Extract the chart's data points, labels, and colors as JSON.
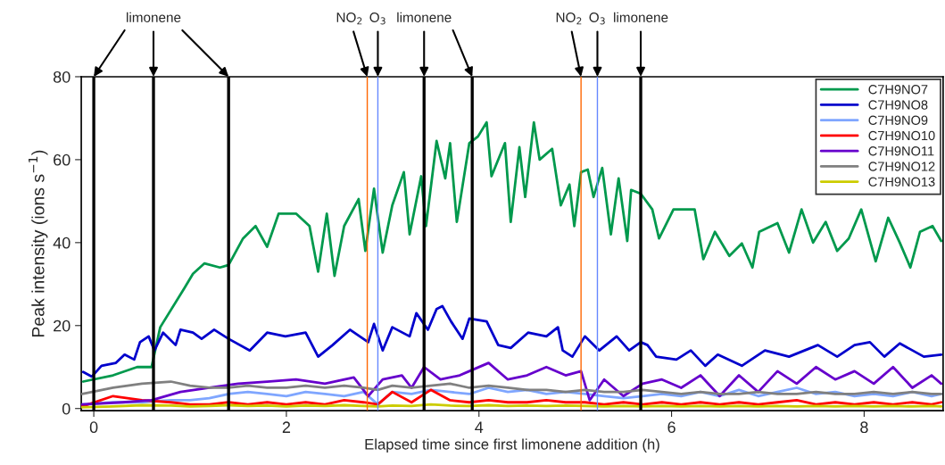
{
  "chart_data": {
    "type": "line",
    "xlabel": "Elapsed time since first limonene addition (h)",
    "ylabel": "Peak intensity (ions s$^{−1}$)",
    "xlim": [
      -0.13,
      8.82
    ],
    "ylim": [
      -0.5,
      80
    ],
    "xticks": [
      0,
      2,
      4,
      6,
      8
    ],
    "yticks": [
      0,
      20,
      40,
      60,
      80
    ],
    "grid": false,
    "legend": "top right",
    "series": [
      {
        "name": "C7H9NO7",
        "color": "#00994d",
        "x": [
          -0.11,
          0.2,
          0.45,
          0.6,
          0.69,
          0.94,
          1.03,
          1.15,
          1.31,
          1.4,
          1.55,
          1.68,
          1.8,
          1.92,
          2.1,
          2.24,
          2.33,
          2.42,
          2.5,
          2.6,
          2.75,
          2.82,
          2.91,
          3.0,
          3.1,
          3.22,
          3.28,
          3.4,
          3.45,
          3.56,
          3.65,
          3.7,
          3.77,
          3.9,
          3.99,
          4.08,
          4.13,
          4.27,
          4.33,
          4.42,
          4.48,
          4.57,
          4.63,
          4.76,
          4.85,
          4.94,
          4.99,
          5.06,
          5.13,
          5.19,
          5.28,
          5.37,
          5.45,
          5.54,
          5.58,
          5.68,
          5.8,
          5.87,
          6.02,
          6.24,
          6.33,
          6.45,
          6.6,
          6.73,
          6.84,
          6.91,
          7.1,
          7.22,
          7.35,
          7.47,
          7.6,
          7.72,
          7.84,
          7.97,
          8.12,
          8.25,
          8.37,
          8.48,
          8.58,
          8.71,
          8.8
        ],
        "values": [
          6.5,
          8,
          10,
          10,
          19.6,
          29,
          32.5,
          35,
          34,
          34.6,
          41,
          44,
          39,
          47,
          47,
          44,
          33,
          47,
          32,
          44,
          50.5,
          38,
          53,
          37.6,
          49,
          57,
          42,
          56,
          44,
          64.5,
          55.5,
          64,
          45,
          64,
          65.6,
          69,
          56,
          64,
          45,
          63,
          51,
          69,
          60,
          62.6,
          49,
          54,
          44,
          57,
          57.6,
          51,
          58,
          42,
          55.5,
          40.4,
          52.7,
          51.8,
          48,
          41,
          48,
          48,
          36,
          42.6,
          36.8,
          39.8,
          34,
          42.6,
          44.7,
          37.6,
          48,
          40,
          45,
          38,
          41,
          48,
          35.5,
          46,
          40,
          34,
          42.6,
          44,
          40.4
        ]
      },
      {
        "name": "C7H9NO8",
        "color": "#0000cc",
        "x": [
          -0.11,
          -0.02,
          0.08,
          0.23,
          0.32,
          0.42,
          0.48,
          0.57,
          0.63,
          0.72,
          0.85,
          0.9,
          1.03,
          1.12,
          1.25,
          1.4,
          1.62,
          1.8,
          1.99,
          2.2,
          2.33,
          2.48,
          2.66,
          2.85,
          2.91,
          3.0,
          3.1,
          3.28,
          3.35,
          3.47,
          3.56,
          3.62,
          3.71,
          3.83,
          3.9,
          4.08,
          4.2,
          4.33,
          4.51,
          4.7,
          4.82,
          4.87,
          4.97,
          5.1,
          5.25,
          5.43,
          5.56,
          5.68,
          5.75,
          5.84,
          6.05,
          6.2,
          6.35,
          6.48,
          6.73,
          6.97,
          7.22,
          7.52,
          7.72,
          7.9,
          8.06,
          8.21,
          8.37,
          8.62,
          8.8
        ],
        "values": [
          8.8,
          7.7,
          10.3,
          11,
          13,
          11.8,
          16,
          17.4,
          14,
          18.3,
          15.3,
          19,
          18.3,
          16.8,
          19,
          16.8,
          14,
          18.3,
          17.4,
          18.3,
          12.5,
          15.3,
          19,
          16,
          20.4,
          14,
          19.6,
          17.4,
          23,
          19,
          24,
          24.7,
          21,
          16.8,
          21.7,
          21,
          15.3,
          14.6,
          18.3,
          17.4,
          19.6,
          14,
          12.5,
          17.4,
          14,
          17.4,
          14,
          16,
          15.3,
          12.5,
          11.8,
          14,
          10.3,
          13,
          10.3,
          14,
          12.5,
          15.3,
          12.5,
          15.3,
          16,
          12.5,
          15.7,
          12.5,
          13
        ]
      },
      {
        "name": "C7H9NO9",
        "color": "#7fa6ff",
        "x": [
          -0.12,
          0.2,
          0.5,
          0.8,
          1.0,
          1.2,
          1.4,
          1.6,
          1.8,
          2.0,
          2.2,
          2.4,
          2.6,
          2.8,
          2.95,
          3.1,
          3.3,
          3.5,
          3.7,
          3.9,
          4.1,
          4.3,
          4.5,
          4.7,
          4.9,
          5.1,
          5.3,
          5.5,
          5.7,
          5.9,
          6.1,
          6.3,
          6.5,
          6.7,
          6.9,
          7.1,
          7.3,
          7.5,
          7.7,
          7.9,
          8.1,
          8.3,
          8.5,
          8.7,
          8.8
        ],
        "values": [
          1,
          1.5,
          1.5,
          2,
          2,
          2.5,
          3.5,
          4,
          3.5,
          3,
          4,
          3.5,
          3,
          4,
          1,
          4,
          3.5,
          4.5,
          4,
          3.5,
          5,
          4,
          4.5,
          3.5,
          4,
          3.5,
          3,
          2.5,
          3,
          3.5,
          3,
          4,
          3,
          4.5,
          3,
          4,
          5,
          3.5,
          4,
          3,
          3.5,
          3,
          4,
          3,
          3.5
        ]
      },
      {
        "name": "C7H9NO10",
        "color": "#ff0000",
        "x": [
          -0.12,
          0.2,
          0.5,
          0.8,
          1.0,
          1.2,
          1.4,
          1.6,
          1.8,
          2.0,
          2.2,
          2.4,
          2.6,
          2.8,
          2.95,
          3.1,
          3.3,
          3.5,
          3.7,
          3.9,
          4.1,
          4.3,
          4.5,
          4.7,
          4.9,
          5.1,
          5.3,
          5.5,
          5.7,
          5.9,
          6.1,
          6.3,
          6.5,
          6.7,
          6.9,
          7.1,
          7.3,
          7.5,
          7.7,
          7.9,
          8.1,
          8.3,
          8.5,
          8.7,
          8.8
        ],
        "values": [
          0.5,
          3,
          2,
          1.5,
          1,
          1,
          1.5,
          1,
          1.5,
          1,
          1.5,
          1,
          2,
          1.5,
          1,
          4,
          1.5,
          4.5,
          2,
          1.5,
          2,
          1.5,
          1.5,
          2,
          1.5,
          1.5,
          1,
          1.5,
          1,
          1.5,
          1,
          1.5,
          1,
          1.5,
          1,
          1.5,
          2,
          1,
          1.5,
          1,
          1.5,
          1,
          1.5,
          1,
          1.5
        ]
      },
      {
        "name": "C7H9NO11",
        "color": "#6600cc",
        "x": [
          -0.12,
          0.3,
          0.6,
          0.9,
          1.2,
          1.5,
          1.8,
          2.1,
          2.4,
          2.7,
          2.85,
          3.0,
          3.2,
          3.3,
          3.43,
          3.6,
          3.8,
          3.9,
          4.1,
          4.3,
          4.5,
          4.7,
          4.9,
          5.06,
          5.15,
          5.3,
          5.5,
          5.7,
          5.9,
          6.1,
          6.3,
          6.5,
          6.7,
          6.9,
          7.1,
          7.3,
          7.5,
          7.7,
          7.9,
          8.1,
          8.3,
          8.5,
          8.7,
          8.8
        ],
        "values": [
          1,
          1.5,
          2,
          4,
          5,
          6,
          6.5,
          7,
          6,
          7.5,
          3,
          7,
          8,
          5,
          10,
          7,
          8,
          9,
          11,
          7,
          8,
          10,
          8,
          9,
          2,
          7,
          3,
          6,
          7,
          5,
          8,
          3,
          8,
          4,
          9,
          6,
          10,
          7,
          9,
          6,
          10,
          5,
          8,
          6
        ]
      },
      {
        "name": "C7H9NO12",
        "color": "#808080",
        "x": [
          -0.12,
          0.2,
          0.5,
          0.8,
          1.0,
          1.2,
          1.4,
          1.6,
          1.8,
          2.0,
          2.2,
          2.4,
          2.6,
          2.8,
          2.95,
          3.1,
          3.3,
          3.5,
          3.7,
          3.9,
          4.1,
          4.3,
          4.5,
          4.7,
          4.9,
          5.1,
          5.3,
          5.5,
          5.7,
          5.9,
          6.1,
          6.3,
          6.5,
          6.7,
          6.9,
          7.1,
          7.3,
          7.5,
          7.7,
          7.9,
          8.1,
          8.3,
          8.5,
          8.7,
          8.8
        ],
        "values": [
          3.5,
          5,
          6,
          6.5,
          5.5,
          5,
          5,
          5.5,
          5,
          5,
          5.5,
          5,
          5.5,
          5,
          4.5,
          5.5,
          5,
          5.5,
          6,
          5,
          5.5,
          5,
          4.5,
          4.5,
          4,
          4.5,
          4,
          4,
          4.5,
          4,
          3.5,
          4,
          3.5,
          3.5,
          4,
          3.5,
          3.5,
          4,
          3.5,
          3.5,
          4,
          3.5,
          4,
          3.5,
          3.5
        ]
      },
      {
        "name": "C7H9NO13",
        "color": "#cccc00",
        "x": [
          -0.12,
          0.2,
          0.5,
          0.8,
          1.0,
          1.2,
          1.4,
          1.6,
          1.8,
          2.0,
          2.2,
          2.4,
          2.6,
          2.8,
          2.95,
          3.1,
          3.3,
          3.5,
          3.7,
          3.9,
          4.1,
          4.3,
          4.5,
          4.7,
          4.9,
          5.1,
          5.3,
          5.5,
          5.7,
          5.9,
          6.1,
          6.3,
          6.5,
          6.7,
          6.9,
          7.1,
          7.3,
          7.5,
          7.7,
          7.9,
          8.1,
          8.3,
          8.5,
          8.7,
          8.8
        ],
        "values": [
          0.3,
          0.5,
          0.8,
          0.7,
          0.5,
          0.6,
          0.8,
          0.6,
          0.7,
          0.5,
          0.7,
          0.6,
          0.8,
          0.6,
          0.5,
          0.7,
          0.6,
          1,
          0.7,
          0.6,
          0.8,
          0.6,
          0.7,
          0.6,
          0.7,
          0.6,
          0.5,
          0.6,
          0.5,
          0.6,
          0.5,
          0.6,
          0.5,
          0.6,
          0.5,
          0.6,
          0.5,
          0.6,
          0.5,
          0.6,
          0.5,
          0.6,
          0.5,
          0.6,
          0.5
        ]
      }
    ],
    "ref_lines": [
      {
        "axis": "x",
        "value": 0,
        "color": "#000000"
      },
      {
        "axis": "x",
        "value": 0.62,
        "color": "#000000"
      },
      {
        "axis": "x",
        "value": 1.4,
        "color": "#000000"
      },
      {
        "axis": "x",
        "value": 2.84,
        "color": "#ff6600"
      },
      {
        "axis": "x",
        "value": 2.95,
        "color": "#6688ff"
      },
      {
        "axis": "x",
        "value": 3.43,
        "color": "#000000"
      },
      {
        "axis": "x",
        "value": 3.93,
        "color": "#000000"
      },
      {
        "axis": "x",
        "value": 5.06,
        "color": "#ff6600"
      },
      {
        "axis": "x",
        "value": 5.23,
        "color": "#6688ff"
      },
      {
        "axis": "x",
        "value": 5.68,
        "color": "#000000"
      }
    ],
    "annotations": [
      {
        "text": "limonene",
        "x": 0.62,
        "y": 80
      },
      {
        "text": "NO$_{2}$",
        "x": 2.84,
        "y": 80
      },
      {
        "text": "O$_{3}$",
        "x": 2.95,
        "y": 80
      },
      {
        "text": "limonene",
        "x": 3.43,
        "y": 80
      },
      {
        "text": "NO$_{2}$",
        "x": 5.06,
        "y": 80
      },
      {
        "text": "O$_{3}$",
        "x": 5.23,
        "y": 80
      },
      {
        "text": "limonene",
        "x": 5.68,
        "y": 80
      }
    ]
  }
}
